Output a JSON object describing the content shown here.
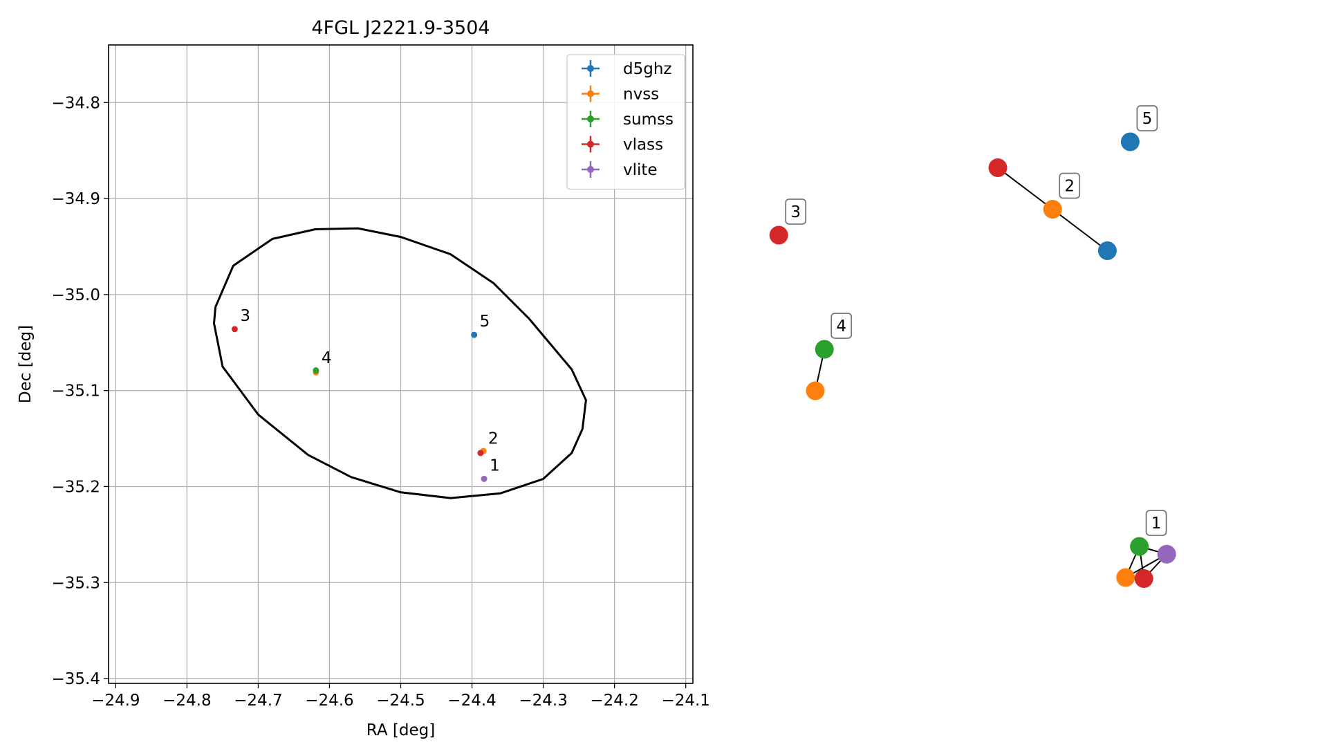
{
  "chart_data": [
    {
      "type": "scatter",
      "title": "4FGL J2221.9-3504",
      "xlabel": "RA [deg]",
      "ylabel": "Dec [deg]",
      "xlim": [
        -24.91,
        -24.09
      ],
      "ylim": [
        -35.405,
        -34.74
      ],
      "grid": true,
      "legend": "top-right",
      "xticks": [
        -24.9,
        -24.8,
        -24.7,
        -24.6,
        -24.5,
        -24.4,
        -24.3,
        -24.2,
        -24.1
      ],
      "xtick_labels": [
        "−24.9",
        "−24.8",
        "−24.7",
        "−24.6",
        "−24.5",
        "−24.4",
        "−24.3",
        "−24.2",
        "−24.1"
      ],
      "yticks": [
        -34.8,
        -34.9,
        -35.0,
        -35.1,
        -35.2,
        -35.3,
        -35.4
      ],
      "ytick_labels": [
        "−34.8",
        "−34.9",
        "−35.0",
        "−35.1",
        "−35.2",
        "−35.3",
        "−35.4"
      ],
      "series": [
        {
          "name": "d5ghz",
          "color": "#1f77b4",
          "points": [
            {
              "x": -24.397,
              "y": -35.042
            }
          ]
        },
        {
          "name": "nvss",
          "color": "#ff7f0e",
          "points": [
            {
              "x": -24.384,
              "y": -35.163
            },
            {
              "x": -24.619,
              "y": -35.081
            }
          ]
        },
        {
          "name": "sumss",
          "color": "#2ca02c",
          "points": [
            {
              "x": -24.619,
              "y": -35.079
            }
          ]
        },
        {
          "name": "vlass",
          "color": "#d62728",
          "points": [
            {
              "x": -24.388,
              "y": -35.165
            },
            {
              "x": -24.733,
              "y": -35.036
            }
          ]
        },
        {
          "name": "vlite",
          "color": "#9467bd",
          "points": [
            {
              "x": -24.383,
              "y": -35.192
            }
          ]
        }
      ],
      "ellipse": {
        "color": "#000000",
        "points": [
          [
            -24.76,
            -35.013
          ],
          [
            -24.735,
            -34.97
          ],
          [
            -24.68,
            -34.942
          ],
          [
            -24.62,
            -34.932
          ],
          [
            -24.56,
            -34.931
          ],
          [
            -24.5,
            -34.94
          ],
          [
            -24.43,
            -34.958
          ],
          [
            -24.37,
            -34.988
          ],
          [
            -24.32,
            -35.025
          ],
          [
            -24.26,
            -35.078
          ],
          [
            -24.24,
            -35.11
          ],
          [
            -24.245,
            -35.14
          ],
          [
            -24.26,
            -35.165
          ],
          [
            -24.3,
            -35.192
          ],
          [
            -24.36,
            -35.207
          ],
          [
            -24.43,
            -35.212
          ],
          [
            -24.5,
            -35.206
          ],
          [
            -24.57,
            -35.19
          ],
          [
            -24.63,
            -35.167
          ],
          [
            -24.7,
            -35.125
          ],
          [
            -24.75,
            -35.075
          ],
          [
            -24.762,
            -35.03
          ],
          [
            -24.76,
            -35.013
          ]
        ]
      },
      "point_labels": [
        {
          "text": "1",
          "x": -24.383,
          "y": -35.192
        },
        {
          "text": "2",
          "x": -24.385,
          "y": -35.164
        },
        {
          "text": "3",
          "x": -24.733,
          "y": -35.036
        },
        {
          "text": "4",
          "x": -24.619,
          "y": -35.08
        },
        {
          "text": "5",
          "x": -24.397,
          "y": -35.042
        }
      ]
    },
    {
      "type": "network",
      "nodes": [
        {
          "id": "n5",
          "color": "#1f77b4",
          "x": 0.84,
          "y": 0.9
        },
        {
          "id": "n2v",
          "color": "#d62728",
          "x": 0.55,
          "y": 0.85
        },
        {
          "id": "n2n",
          "color": "#ff7f0e",
          "x": 0.67,
          "y": 0.77
        },
        {
          "id": "n2d",
          "color": "#1f77b4",
          "x": 0.79,
          "y": 0.69
        },
        {
          "id": "n3",
          "color": "#d62728",
          "x": 0.07,
          "y": 0.72
        },
        {
          "id": "n4s",
          "color": "#2ca02c",
          "x": 0.17,
          "y": 0.5
        },
        {
          "id": "n4n",
          "color": "#ff7f0e",
          "x": 0.15,
          "y": 0.42
        },
        {
          "id": "n1s",
          "color": "#2ca02c",
          "x": 0.86,
          "y": 0.12
        },
        {
          "id": "n1p",
          "color": "#9467bd",
          "x": 0.92,
          "y": 0.105
        },
        {
          "id": "n1n",
          "color": "#ff7f0e",
          "x": 0.83,
          "y": 0.06
        },
        {
          "id": "n1v",
          "color": "#d62728",
          "x": 0.87,
          "y": 0.058
        }
      ],
      "edges": [
        [
          "n2v",
          "n2n"
        ],
        [
          "n2n",
          "n2d"
        ],
        [
          "n4s",
          "n4n"
        ],
        [
          "n1s",
          "n1n"
        ],
        [
          "n1s",
          "n1v"
        ],
        [
          "n1s",
          "n1p"
        ],
        [
          "n1n",
          "n1v"
        ],
        [
          "n1n",
          "n1p"
        ],
        [
          "n1v",
          "n1p"
        ]
      ],
      "labels": [
        {
          "text": "5",
          "node": "n5"
        },
        {
          "text": "2",
          "node": "n2n"
        },
        {
          "text": "3",
          "node": "n3"
        },
        {
          "text": "4",
          "node": "n4s"
        },
        {
          "text": "1",
          "node": "n1s"
        }
      ]
    }
  ]
}
